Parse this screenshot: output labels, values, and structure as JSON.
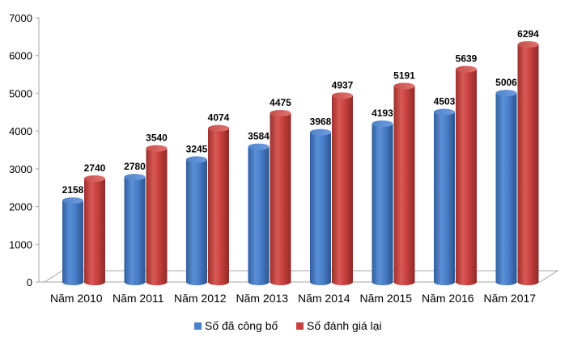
{
  "chart_data": {
    "type": "bar",
    "categories": [
      "Năm 2010",
      "Năm 2011",
      "Năm 2012",
      "Năm 2013",
      "Năm 2014",
      "Năm 2015",
      "Năm 2016",
      "Năm 2017"
    ],
    "series": [
      {
        "name": "Số đã công bố",
        "values": [
          2158,
          2780,
          3245,
          3584,
          3968,
          4193,
          4503,
          5006
        ],
        "color": "#4a7fc9"
      },
      {
        "name": "Số đánh giá lại",
        "values": [
          2740,
          3540,
          4074,
          4475,
          4937,
          5191,
          5639,
          6294
        ],
        "color": "#c9423f"
      }
    ],
    "yticks": [
      0,
      1000,
      2000,
      3000,
      4000,
      5000,
      6000,
      7000
    ],
    "ylim": [
      0,
      7000
    ],
    "title": "",
    "xlabel": "",
    "ylabel": "",
    "grid": false,
    "legend_position": "bottom",
    "style": "3d-cylinder"
  }
}
